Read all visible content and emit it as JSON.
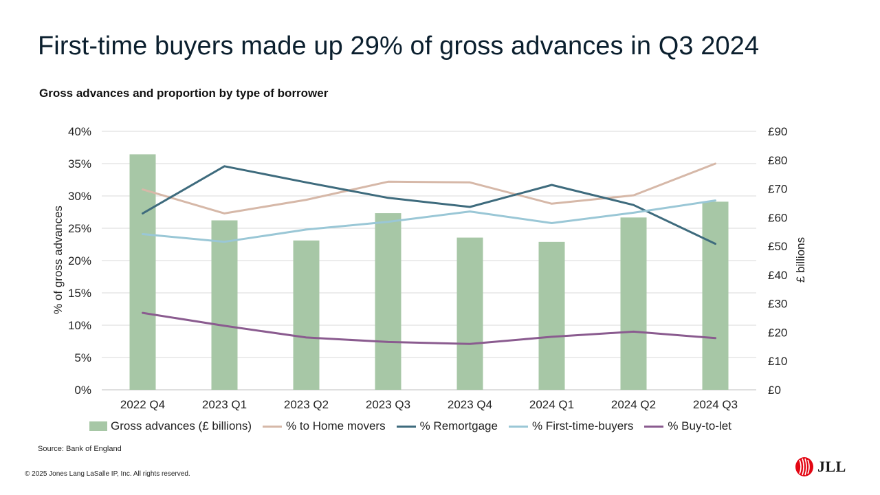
{
  "headline": "First-time buyers made up 29% of gross advances in Q3 2024",
  "source": "Source: Bank of England",
  "copyright": "© 2025 Jones Lang LaSalle IP, Inc. All rights reserved.",
  "logo": {
    "text": "JLL",
    "color": "#e30613"
  },
  "chart_data": {
    "type": "bar",
    "title": "Gross advances and proportion by type of borrower",
    "categories": [
      "2022 Q4",
      "2023 Q1",
      "2023 Q2",
      "2023 Q3",
      "2023 Q4",
      "2024 Q1",
      "2024 Q2",
      "2024 Q3"
    ],
    "bar_series": {
      "name": "Gross advances (£ billions)",
      "values": [
        82,
        59,
        52,
        61.5,
        53,
        51.5,
        60,
        65.5
      ],
      "color": "#a7c7a6",
      "axis": "right"
    },
    "line_series": [
      {
        "name": "% to Home movers",
        "values": [
          31.0,
          27.3,
          29.4,
          32.2,
          32.1,
          28.8,
          30.1,
          35.0
        ],
        "color": "#d6b8a8",
        "axis": "left"
      },
      {
        "name": "% Remortgage",
        "values": [
          27.3,
          34.6,
          32.1,
          29.7,
          28.3,
          31.7,
          28.6,
          22.6
        ],
        "color": "#3e6b7d",
        "axis": "left"
      },
      {
        "name": "% First-time-buyers",
        "values": [
          24.1,
          22.9,
          24.8,
          26.0,
          27.6,
          25.8,
          27.4,
          29.3
        ],
        "color": "#9ac7d6",
        "axis": "left"
      },
      {
        "name": "% Buy-to-let",
        "values": [
          11.9,
          9.9,
          8.1,
          7.4,
          7.1,
          8.2,
          9.0,
          8.0
        ],
        "color": "#8a5b8f",
        "axis": "left"
      }
    ],
    "left_axis": {
      "label": "% of gross advances",
      "ylim": [
        0,
        40
      ],
      "ticks": [
        "0%",
        "5%",
        "10%",
        "15%",
        "20%",
        "25%",
        "30%",
        "35%",
        "40%"
      ]
    },
    "right_axis": {
      "label": "£ billions",
      "ylim": [
        0,
        90
      ],
      "ticks": [
        "£0",
        "£10",
        "£20",
        "£30",
        "£40",
        "£50",
        "£60",
        "£70",
        "£80",
        "£90"
      ]
    },
    "grid": true,
    "legend_position": "bottom"
  }
}
